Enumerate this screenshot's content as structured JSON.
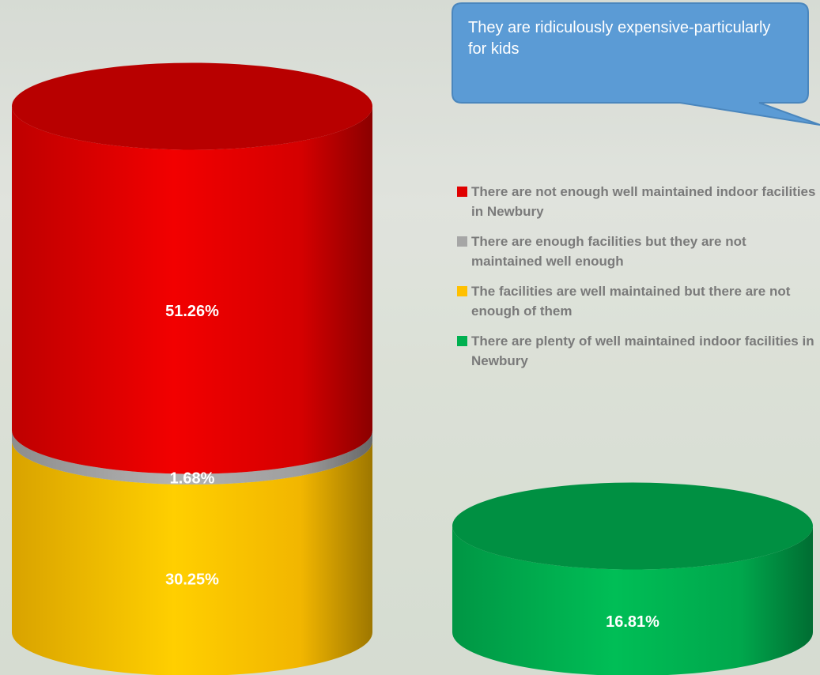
{
  "chart_data": {
    "type": "bar",
    "stacked": true,
    "categories": [
      null,
      null
    ],
    "series": [
      {
        "name": "There are not enough well maintained indoor facilities in Newbury",
        "color": "#e00000",
        "values": [
          51.26,
          null
        ],
        "value_labels": [
          "51.26%",
          null
        ]
      },
      {
        "name": "There are enough facilities but they are not maintained well enough",
        "color": "#a6a6a6",
        "values": [
          1.68,
          null
        ],
        "value_labels": [
          "1.68%",
          null
        ]
      },
      {
        "name": "The facilities are well maintained but there are not enough of them",
        "color": "#ffc000",
        "values": [
          30.25,
          null
        ],
        "value_labels": [
          "30.25%",
          null
        ]
      },
      {
        "name": "There are plenty of well maintained indoor facilities in Newbury",
        "color": "#00b050",
        "values": [
          null,
          16.81
        ],
        "value_labels": [
          null,
          "16.81%"
        ]
      }
    ],
    "ylim": [
      0,
      100
    ],
    "grid": false,
    "legend": "right",
    "annotation": "They are ridiculously expensive-particularly for kids"
  }
}
